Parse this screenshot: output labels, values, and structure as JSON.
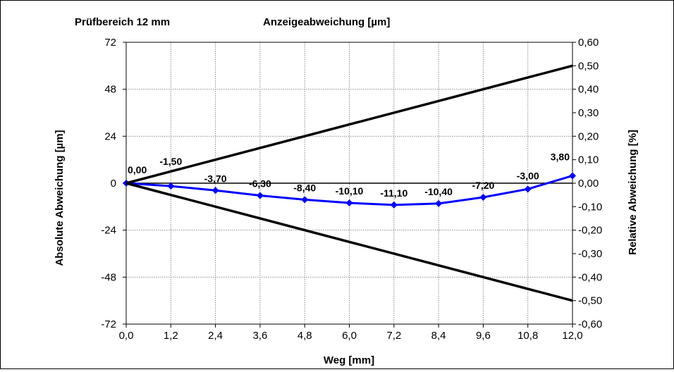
{
  "header": {
    "range_label": "Prüfbereich  12 mm",
    "title": "Anzeigeabweichung [µm]"
  },
  "chart_data": {
    "type": "line",
    "title": "Anzeigeabweichung [µm]",
    "xlabel": "Weg [mm]",
    "ylabel": "Absolute Abweichung [µm]",
    "y2label": "Relative Abweichung [%]",
    "xlim": [
      0,
      12
    ],
    "ylim": [
      -72,
      72
    ],
    "y2lim": [
      -0.6,
      0.6
    ],
    "x_ticks": [
      "0,0",
      "1,2",
      "2,4",
      "3,6",
      "4,8",
      "6,0",
      "7,2",
      "8,4",
      "9,6",
      "10,8",
      "12,0"
    ],
    "y_ticks": [
      "72",
      "48",
      "24",
      "0",
      "-24",
      "-48",
      "-72"
    ],
    "y2_ticks": [
      "0,60",
      "0,50",
      "0,40",
      "0,30",
      "0,20",
      "0,10",
      "0,00",
      "-0,10",
      "-0,20",
      "-0,30",
      "-0,40",
      "-0,50",
      "-0,60"
    ],
    "grid": true,
    "series": [
      {
        "color": "#0000ff",
        "x": [
          0,
          1.2,
          2.4,
          3.6,
          4.8,
          6.0,
          7.2,
          8.4,
          9.6,
          10.8,
          12.0
        ],
        "y": [
          0.0,
          -1.5,
          -3.7,
          -6.3,
          -8.4,
          -10.1,
          -11.1,
          -10.4,
          -7.2,
          -3.0,
          3.8
        ],
        "labels": [
          "0,00",
          "-1,50",
          "-3,70",
          "-6,30",
          "-8,40",
          "-10,10",
          "-11,10",
          "-10,40",
          "-7,20",
          "-3,00",
          "3,80"
        ]
      },
      {
        "color": "#000000",
        "x": [
          0,
          12
        ],
        "y": [
          0,
          60
        ]
      },
      {
        "color": "#000000",
        "x": [
          0,
          12
        ],
        "y": [
          0,
          -60
        ]
      }
    ]
  }
}
